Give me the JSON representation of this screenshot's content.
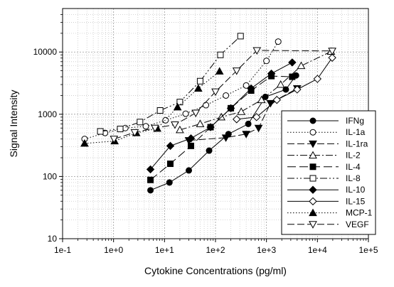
{
  "chart_data": {
    "type": "line",
    "title": "",
    "xlabel": "Cytokine Concentrations (pg/ml)",
    "ylabel": "Signal Intensity",
    "xscale": "log",
    "yscale": "log",
    "xlim": [
      0.1,
      100000
    ],
    "ylim": [
      10,
      50000
    ],
    "xticks": [
      {
        "value": 0.1,
        "label": "1e-1"
      },
      {
        "value": 1,
        "label": "1e+0"
      },
      {
        "value": 10,
        "label": "1e+1"
      },
      {
        "value": 100,
        "label": "1e+2"
      },
      {
        "value": 1000,
        "label": "1e+3"
      },
      {
        "value": 10000,
        "label": "1e+4"
      },
      {
        "value": 100000,
        "label": "1e+5"
      }
    ],
    "yticks": [
      {
        "value": 10,
        "label": "10"
      },
      {
        "value": 100,
        "label": "100"
      },
      {
        "value": 1000,
        "label": "1000"
      },
      {
        "value": 10000,
        "label": "10000"
      }
    ],
    "grid": "dotted",
    "legend_position": "bottom-right",
    "series": [
      {
        "name": "IFNg",
        "marker": "circle",
        "fill": "filled",
        "dash": "",
        "points": [
          [
            5.3,
            60
          ],
          [
            12.5,
            80
          ],
          [
            30,
            125
          ],
          [
            75,
            260
          ],
          [
            180,
            480
          ],
          [
            440,
            700
          ],
          [
            950,
            1900
          ],
          [
            2400,
            2500
          ],
          [
            3800,
            4200
          ]
        ]
      },
      {
        "name": "IL-1a",
        "marker": "circle",
        "fill": "open",
        "dash": "1.5,2.5",
        "points": [
          [
            0.27,
            400
          ],
          [
            0.68,
            500
          ],
          [
            1.7,
            600
          ],
          [
            4.3,
            640
          ],
          [
            10.5,
            800
          ],
          [
            26,
            1020
          ],
          [
            65,
            1400
          ],
          [
            160,
            2000
          ],
          [
            400,
            2900
          ],
          [
            1000,
            7200
          ],
          [
            1700,
            14700
          ]
        ]
      },
      {
        "name": "IL-1ra",
        "marker": "triangle-down",
        "fill": "filled",
        "dash": "10,4",
        "points": [
          [
            30,
            380
          ],
          [
            160,
            420
          ],
          [
            400,
            480
          ],
          [
            700,
            600
          ],
          [
            1200,
            1500
          ],
          [
            4000,
            2600
          ]
        ]
      },
      {
        "name": "IL-2",
        "marker": "triangle-up",
        "fill": "open",
        "dash": "10,3,2,3",
        "points": [
          [
            20,
            560
          ],
          [
            50,
            700
          ],
          [
            130,
            900
          ],
          [
            320,
            1100
          ],
          [
            800,
            1700
          ],
          [
            1900,
            3000
          ],
          [
            4800,
            6000
          ],
          [
            18500,
            10200
          ]
        ]
      },
      {
        "name": "IL-4",
        "marker": "square",
        "fill": "filled",
        "dash": "12,5",
        "points": [
          [
            5.3,
            88
          ],
          [
            13,
            160
          ],
          [
            33,
            310
          ],
          [
            80,
            620
          ],
          [
            200,
            1250
          ],
          [
            500,
            2400
          ],
          [
            1250,
            4100
          ],
          [
            3200,
            4000
          ]
        ]
      },
      {
        "name": "IL-8",
        "marker": "square",
        "fill": "open",
        "dash": "10,3,2,3,2,3",
        "points": [
          [
            0.55,
            530
          ],
          [
            1.35,
            580
          ],
          [
            3.3,
            750
          ],
          [
            8.2,
            1150
          ],
          [
            20,
            1570
          ],
          [
            50,
            3400
          ],
          [
            125,
            9000
          ],
          [
            310,
            18000
          ]
        ]
      },
      {
        "name": "IL-10",
        "marker": "diamond",
        "fill": "filled",
        "dash": "",
        "points": [
          [
            5.3,
            130
          ],
          [
            13,
            310
          ],
          [
            33,
            410
          ],
          [
            80,
            620
          ],
          [
            200,
            1250
          ],
          [
            500,
            2600
          ],
          [
            1250,
            4500
          ],
          [
            3200,
            6800
          ]
        ]
      },
      {
        "name": "IL-15",
        "marker": "diamond",
        "fill": "open",
        "dash": "",
        "points": [
          [
            260,
            830
          ],
          [
            640,
            900
          ],
          [
            1600,
            1700
          ],
          [
            4000,
            2500
          ],
          [
            10000,
            3700
          ],
          [
            19500,
            8100
          ]
        ]
      },
      {
        "name": "MCP-1",
        "marker": "triangle-up",
        "fill": "filled",
        "dash": "1.5,2.5",
        "points": [
          [
            0.27,
            340
          ],
          [
            1.05,
            370
          ],
          [
            2.8,
            500
          ],
          [
            7.2,
            590
          ],
          [
            18,
            1300
          ],
          [
            46,
            2600
          ],
          [
            120,
            4900
          ]
        ]
      },
      {
        "name": "VEGF",
        "marker": "triangle-down",
        "fill": "open",
        "dash": "10,4",
        "points": [
          [
            1.02,
            400
          ],
          [
            2.6,
            510
          ],
          [
            6.5,
            600
          ],
          [
            16,
            680
          ],
          [
            41,
            1050
          ],
          [
            100,
            2300
          ],
          [
            260,
            5000
          ],
          [
            650,
            10600
          ],
          [
            19500,
            10400
          ]
        ]
      }
    ]
  }
}
